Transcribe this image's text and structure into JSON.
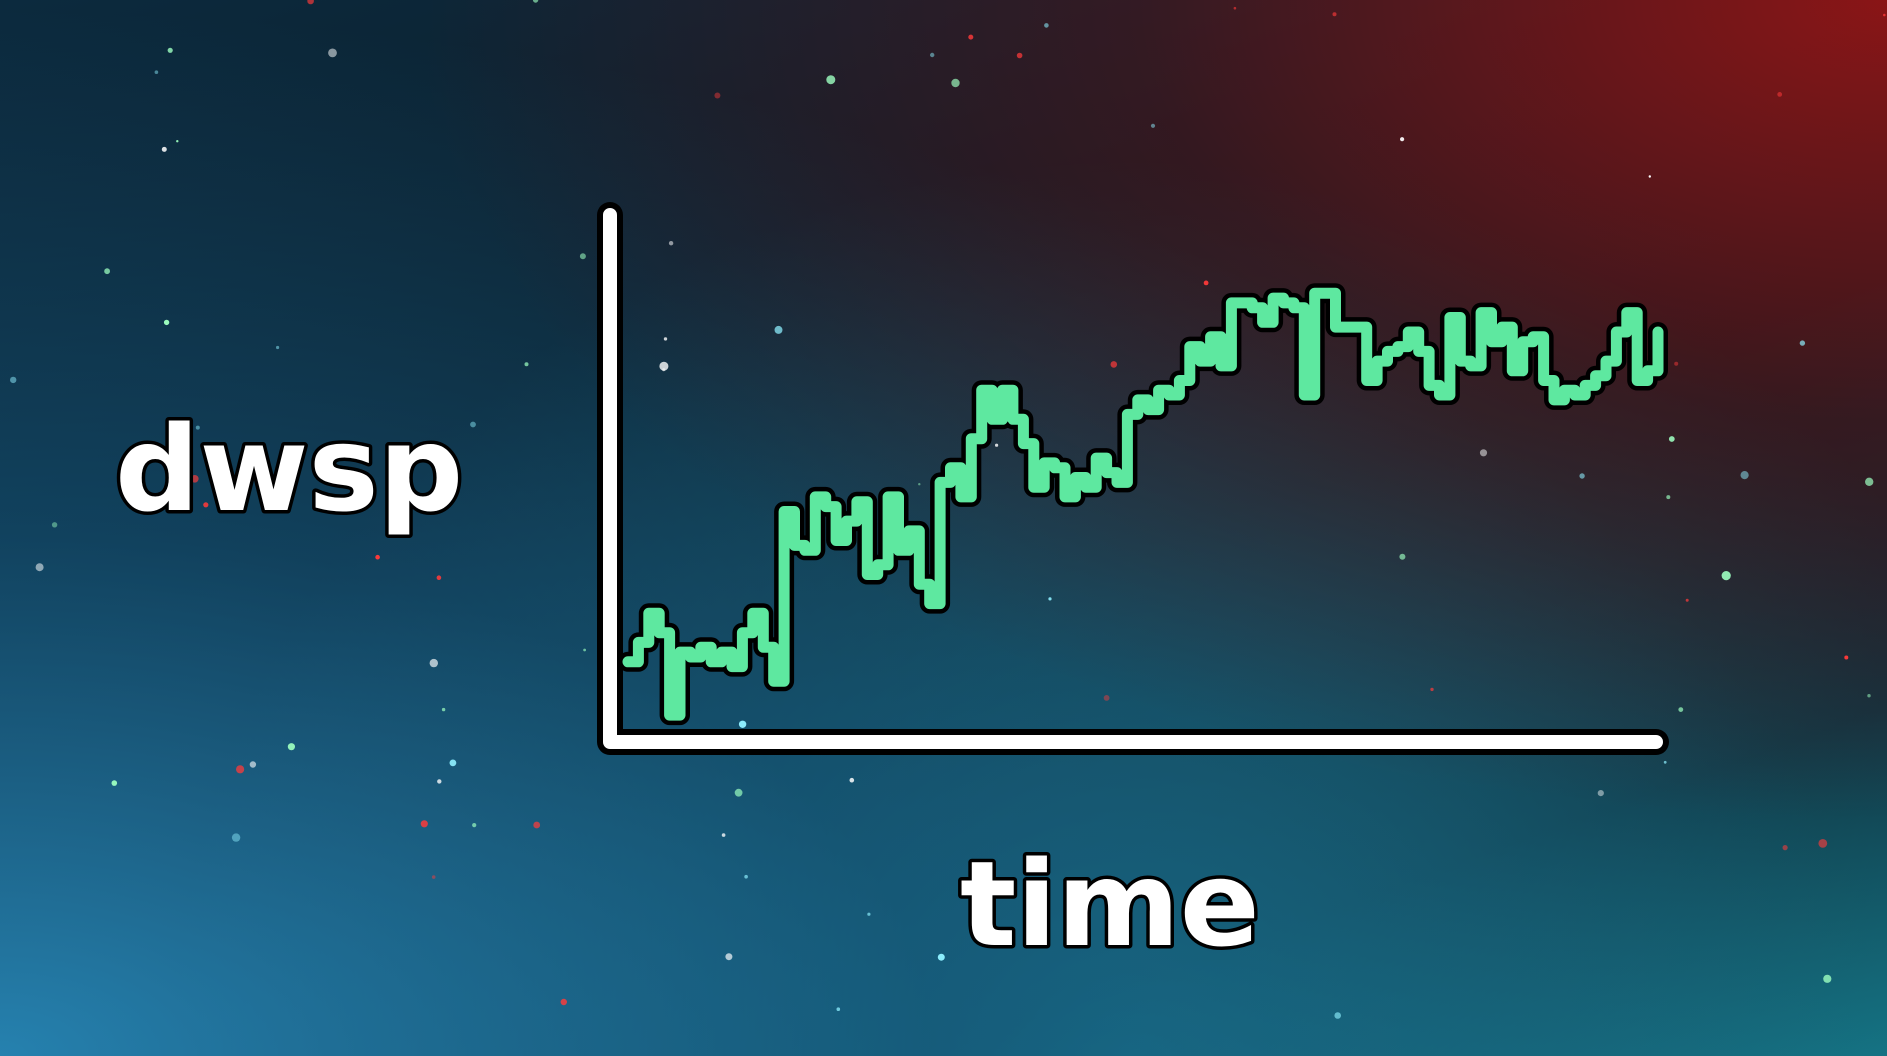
{
  "chart_data": {
    "type": "line",
    "style": "step",
    "xlabel": "time",
    "ylabel": "dwsp",
    "x": [
      0,
      1,
      2,
      3,
      4,
      5,
      6,
      7,
      8,
      9,
      10,
      11,
      12,
      13,
      14,
      15,
      16,
      17,
      18,
      19,
      20,
      21,
      22,
      23,
      24,
      25,
      26,
      27,
      28,
      29,
      30,
      31,
      32,
      33,
      34,
      35,
      36,
      37,
      38,
      39,
      40,
      41,
      42,
      43,
      44,
      45,
      46,
      47,
      48,
      49,
      50,
      51,
      52,
      53,
      54,
      55,
      56,
      57,
      58,
      59,
      60,
      61,
      62,
      63,
      64,
      65,
      66,
      67,
      68,
      69,
      70,
      71,
      72,
      73,
      74,
      75,
      76,
      77,
      78,
      79,
      80,
      81,
      82,
      83,
      84,
      85,
      86,
      87,
      88,
      89,
      90,
      91,
      92,
      93,
      94,
      95,
      96,
      97,
      98,
      99
    ],
    "series": [
      {
        "color": "#5ee8a0",
        "values": [
          12,
          16,
          22,
          18,
          1,
          14,
          13,
          15,
          12,
          14,
          11,
          18,
          22,
          15,
          8,
          43,
          36,
          35,
          46,
          44,
          37,
          41,
          45,
          30,
          32,
          46,
          35,
          39,
          28,
          24,
          49,
          52,
          46,
          58,
          68,
          62,
          68,
          62,
          57,
          48,
          53,
          52,
          46,
          50,
          48,
          54,
          51,
          49,
          63,
          66,
          64,
          68,
          67,
          70,
          77,
          74,
          79,
          73,
          86,
          86,
          85,
          82,
          87,
          86,
          85,
          67,
          88,
          88,
          81,
          81,
          81,
          70,
          74,
          76,
          77,
          80,
          76,
          69,
          67,
          83,
          74,
          73,
          84,
          78,
          81,
          72,
          78,
          79,
          70,
          66,
          68,
          67,
          69,
          71,
          74,
          80,
          84,
          70,
          72,
          80
        ]
      }
    ],
    "grid": false,
    "legend": "none"
  },
  "colors": {
    "line": "#5ee8a0",
    "line_outline": "#000000",
    "axis": "#ffffff",
    "label_text": "#ffffff",
    "star_red": "#ff3a3a",
    "star_cyan": "#8ff0ff",
    "star_green": "#9dffc0"
  }
}
